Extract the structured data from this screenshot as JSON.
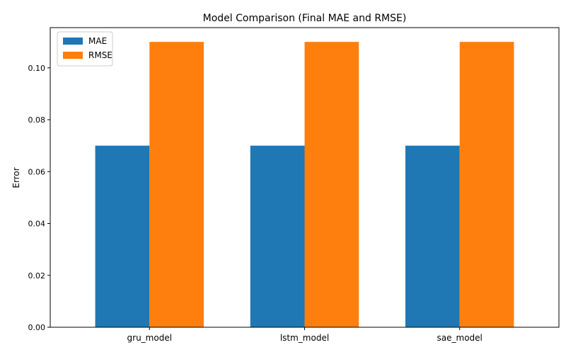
{
  "chart_data": {
    "type": "bar",
    "title": "Model Comparison (Final MAE and RMSE)",
    "xlabel": "",
    "ylabel": "Error",
    "categories": [
      "gru_model",
      "lstm_model",
      "sae_model"
    ],
    "series": [
      {
        "name": "MAE",
        "values": [
          0.07,
          0.07,
          0.07
        ],
        "color": "#1f77b4"
      },
      {
        "name": "RMSE",
        "values": [
          0.11,
          0.11,
          0.11
        ],
        "color": "#ff7f0e"
      }
    ],
    "ylim": [
      0,
      0.1155
    ],
    "yticks": [
      "0.00",
      "0.02",
      "0.04",
      "0.06",
      "0.08",
      "0.10"
    ],
    "grid": false,
    "legend_position": "top-left"
  }
}
